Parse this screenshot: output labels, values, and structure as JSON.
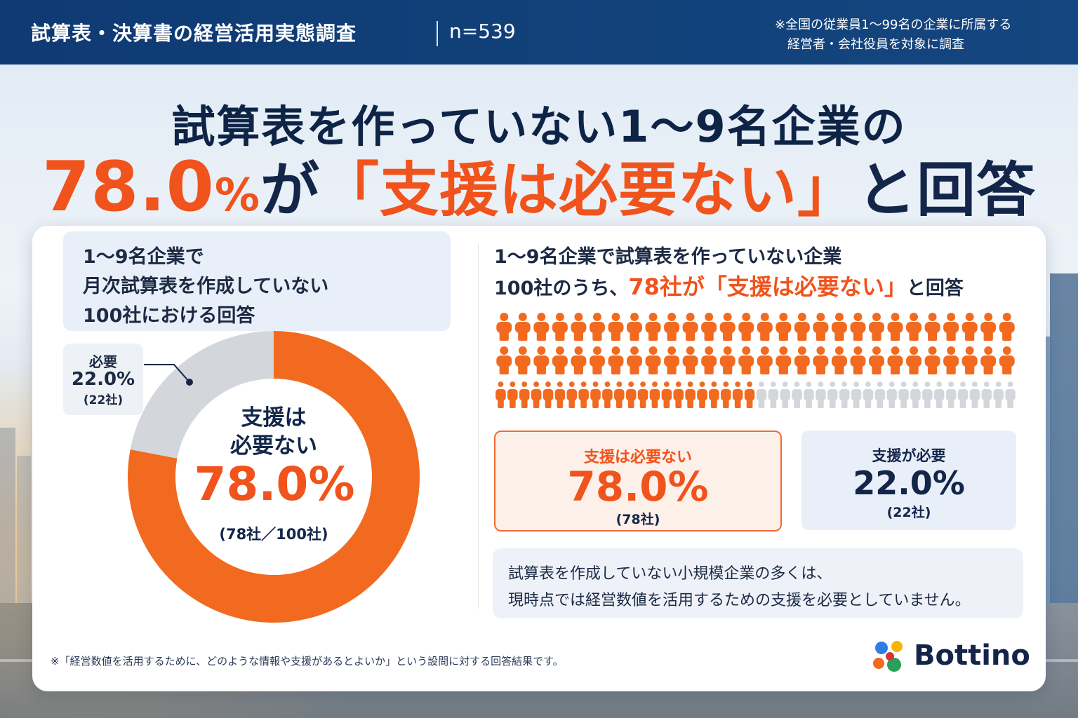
{
  "header": {
    "title": "試算表・決算書の経営活用実態調査",
    "sample": "n=539",
    "note_line1": "※全国の従業員1～99名の企業に所属する",
    "note_line2": "経営者・会社役員を対象に調査"
  },
  "headline": {
    "line1": "試算表を作っていない1～9名企業の",
    "pct_number": "78.0",
    "pct_sign": "%",
    "line2_a": "が",
    "line2_accent": "「支援は必要ない」",
    "line2_b": "と回答"
  },
  "left_panel": {
    "box_line1": "1～9名企業で",
    "box_line2": "月次試算表を作成していない",
    "box_line3": "100社における回答",
    "need_label": "必要",
    "need_pct": "22.0%",
    "need_count": "(22社)",
    "center_label1": "支援は",
    "center_label2": "必要ない",
    "center_pct": "78.0%",
    "center_count": "(78社／100社)"
  },
  "right_panel": {
    "title_line1": "1～9名企業で試算表を作っていない企業",
    "title_line2_a": "100社のうち、",
    "title_line2_accent": "78社が「支援は必要ない」",
    "title_line2_b": "と回答",
    "not_needed_label": "支援は必要ない",
    "not_needed_pct": "78.0%",
    "not_needed_count": "(78社)",
    "needed_label": "支援が必要",
    "needed_pct": "22.0%",
    "needed_count": "(22社)",
    "summary_line1": "試算表を作成していない小規模企業の多くは、",
    "summary_line2": "現時点では経営数値を活用するための支援を必要としていません。"
  },
  "footnote": "※「経営数値を活用するために、どのような情報や支援があるとよいか」という設問に対する回答結果です。",
  "logo": {
    "text": "Bottino"
  },
  "colors": {
    "orange": "#f26a1f",
    "gray": "#d3d6db",
    "navy": "#13264a",
    "header_blue": "#0f3a73"
  },
  "chart_data": [
    {
      "type": "pie",
      "donut": true,
      "categories": [
        "支援は必要ない",
        "必要"
      ],
      "values": [
        78.0,
        22.0
      ],
      "counts": [
        78,
        22
      ],
      "total": 100
    },
    {
      "type": "pictograph",
      "total": 100,
      "rows": 3,
      "per_row": [
        28,
        28,
        44
      ],
      "series": [
        {
          "name": "支援は必要ない",
          "values": [
            78
          ]
        },
        {
          "name": "支援が必要",
          "values": [
            22
          ]
        }
      ]
    }
  ]
}
